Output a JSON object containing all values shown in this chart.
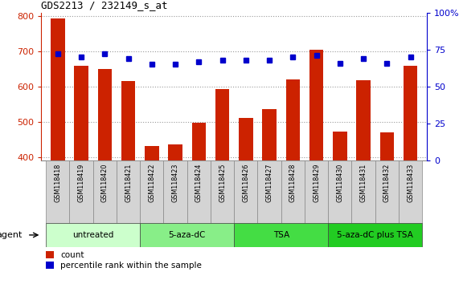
{
  "title": "GDS2213 / 232149_s_at",
  "samples": [
    "GSM118418",
    "GSM118419",
    "GSM118420",
    "GSM118421",
    "GSM118422",
    "GSM118423",
    "GSM118424",
    "GSM118425",
    "GSM118426",
    "GSM118427",
    "GSM118428",
    "GSM118429",
    "GSM118430",
    "GSM118431",
    "GSM118432",
    "GSM118433"
  ],
  "counts": [
    795,
    660,
    650,
    615,
    430,
    435,
    498,
    593,
    510,
    535,
    620,
    705,
    472,
    618,
    470,
    660
  ],
  "percentiles": [
    72,
    70,
    72,
    69,
    65,
    65,
    67,
    68,
    68,
    68,
    70,
    71,
    66,
    69,
    66,
    70
  ],
  "bar_color": "#cc2200",
  "dot_color": "#0000cc",
  "ylim_left": [
    390,
    810
  ],
  "ylim_right": [
    0,
    100
  ],
  "yticks_left": [
    400,
    500,
    600,
    700,
    800
  ],
  "yticks_right": [
    0,
    25,
    50,
    75,
    100
  ],
  "grid_color": "#999999",
  "tick_bg_color": "#d4d4d4",
  "groups": [
    {
      "label": "untreated",
      "start": 0,
      "end": 3,
      "color": "#ccffcc"
    },
    {
      "label": "5-aza-dC",
      "start": 4,
      "end": 7,
      "color": "#88ee88"
    },
    {
      "label": "TSA",
      "start": 8,
      "end": 11,
      "color": "#44dd44"
    },
    {
      "label": "5-aza-dC plus TSA",
      "start": 12,
      "end": 15,
      "color": "#22cc22"
    }
  ],
  "agent_label": "agent",
  "legend_count_label": "count",
  "legend_pct_label": "percentile rank within the sample",
  "background_color": "#ffffff"
}
